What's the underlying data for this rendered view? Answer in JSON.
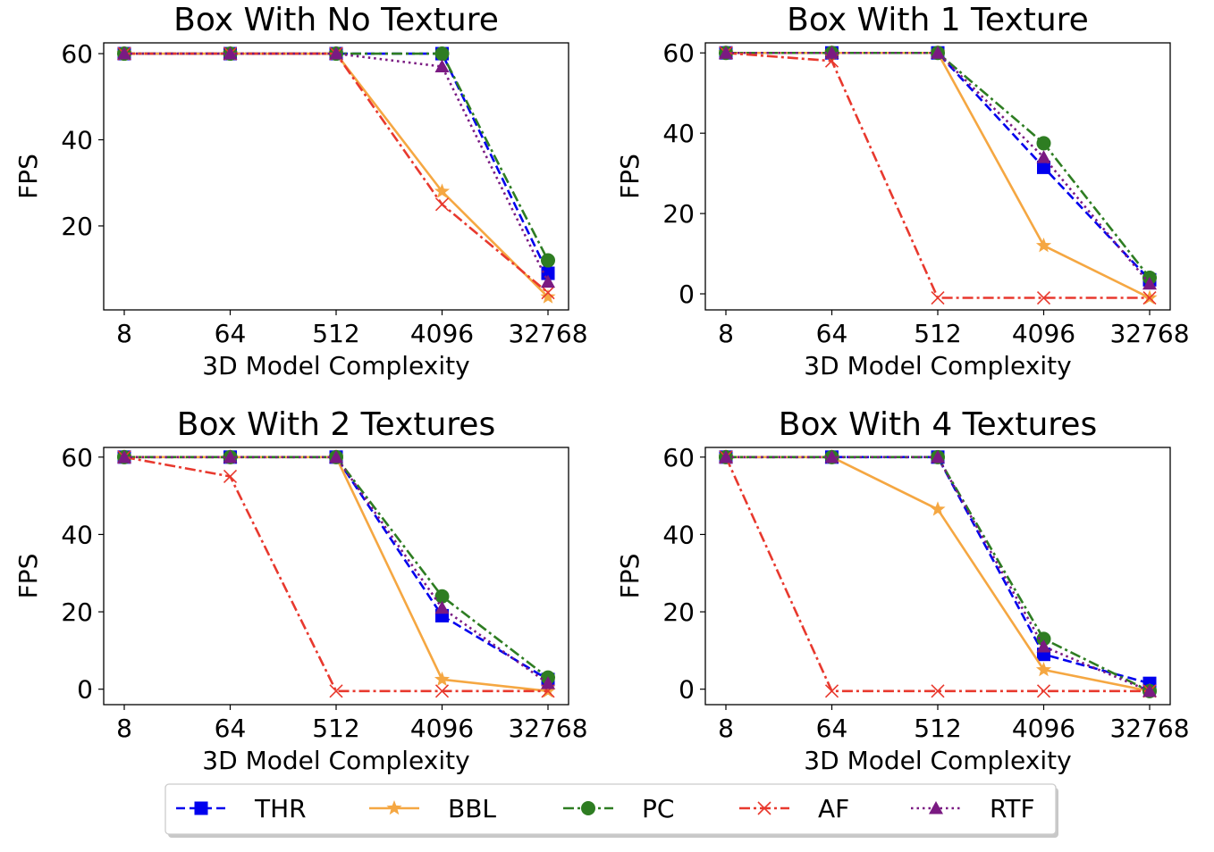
{
  "chart_data": [
    {
      "type": "line",
      "title": "Box With No Texture",
      "xlabel": "3D Model Complexity",
      "ylabel": "FPS",
      "categories": [
        "8",
        "64",
        "512",
        "4096",
        "32768"
      ],
      "ylim": [
        0.5,
        62.5
      ],
      "yticks": [
        20,
        40,
        60
      ],
      "series": [
        {
          "name": "THR",
          "values": [
            60,
            60,
            60,
            60,
            9
          ]
        },
        {
          "name": "BBL",
          "values": [
            60,
            60,
            60,
            28,
            3.5
          ]
        },
        {
          "name": "PC",
          "values": [
            60,
            60,
            60,
            60,
            12
          ]
        },
        {
          "name": "AF",
          "values": [
            60,
            60,
            60,
            25,
            4.5
          ]
        },
        {
          "name": "RTF",
          "values": [
            60,
            60,
            60,
            57,
            7
          ]
        }
      ]
    },
    {
      "type": "line",
      "title": "Box With 1 Texture",
      "xlabel": "3D Model Complexity",
      "ylabel": "FPS",
      "categories": [
        "8",
        "64",
        "512",
        "4096",
        "32768"
      ],
      "ylim": [
        -4,
        62.5
      ],
      "yticks": [
        0,
        20,
        40,
        60
      ],
      "series": [
        {
          "name": "THR",
          "values": [
            60,
            60,
            60,
            31.5,
            3.5
          ]
        },
        {
          "name": "BBL",
          "values": [
            60,
            60,
            60,
            12,
            -1
          ]
        },
        {
          "name": "PC",
          "values": [
            60,
            60,
            60,
            37.5,
            4
          ]
        },
        {
          "name": "AF",
          "values": [
            60,
            58,
            -1,
            -1,
            -1
          ]
        },
        {
          "name": "RTF",
          "values": [
            60,
            60,
            60,
            34,
            2.5
          ]
        }
      ]
    },
    {
      "type": "line",
      "title": "Box With 2 Textures",
      "xlabel": "3D Model Complexity",
      "ylabel": "FPS",
      "categories": [
        "8",
        "64",
        "512",
        "4096",
        "32768"
      ],
      "ylim": [
        -4,
        62.5
      ],
      "yticks": [
        0,
        20,
        40,
        60
      ],
      "series": [
        {
          "name": "THR",
          "values": [
            60,
            60,
            60,
            19,
            2.5
          ]
        },
        {
          "name": "BBL",
          "values": [
            60,
            60,
            60,
            2.5,
            -0.5
          ]
        },
        {
          "name": "PC",
          "values": [
            60,
            60,
            60,
            24,
            3
          ]
        },
        {
          "name": "AF",
          "values": [
            60,
            55,
            -0.5,
            -0.5,
            -0.5
          ]
        },
        {
          "name": "RTF",
          "values": [
            60,
            60,
            60,
            21,
            1.5
          ]
        }
      ]
    },
    {
      "type": "line",
      "title": "Box With 4 Textures",
      "xlabel": "3D Model Complexity",
      "ylabel": "FPS",
      "categories": [
        "8",
        "64",
        "512",
        "4096",
        "32768"
      ],
      "ylim": [
        -4,
        62.5
      ],
      "yticks": [
        0,
        20,
        40,
        60
      ],
      "series": [
        {
          "name": "THR",
          "values": [
            60,
            60,
            60,
            9,
            1.5
          ]
        },
        {
          "name": "BBL",
          "values": [
            60,
            60,
            46.5,
            5,
            -0.5
          ]
        },
        {
          "name": "PC",
          "values": [
            60,
            60,
            60,
            13,
            -0.5
          ]
        },
        {
          "name": "AF",
          "values": [
            60,
            -0.5,
            -0.5,
            -0.5,
            -0.5
          ]
        },
        {
          "name": "RTF",
          "values": [
            60,
            60,
            60,
            11,
            -0.5
          ]
        }
      ]
    }
  ],
  "legend": {
    "placement": "bottom-center",
    "items": [
      {
        "label": "THR",
        "color": "#0000ee",
        "marker": "square-icon",
        "dash": "dashed"
      },
      {
        "label": "BBL",
        "color": "#f5a742",
        "marker": "star-icon",
        "dash": "solid"
      },
      {
        "label": "PC",
        "color": "#2e7d22",
        "marker": "circle-icon",
        "dash": "dash-dot"
      },
      {
        "label": "AF",
        "color": "#e8392e",
        "marker": "x-icon",
        "dash": "dash-dot"
      },
      {
        "label": "RTF",
        "color": "#7a1a82",
        "marker": "triangle-icon",
        "dash": "dotted"
      }
    ]
  }
}
